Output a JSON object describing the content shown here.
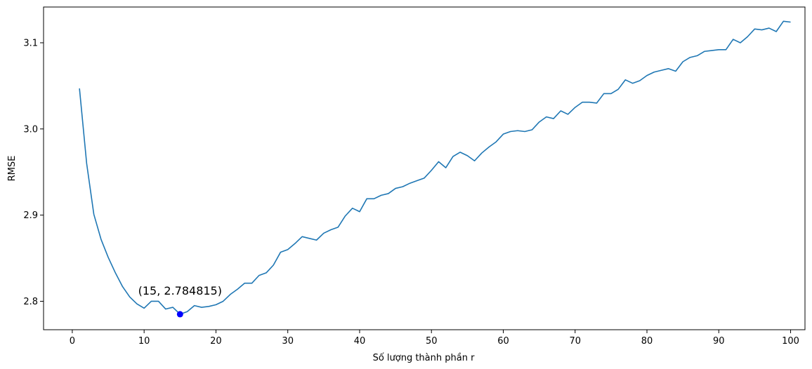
{
  "chart_data": {
    "type": "line",
    "title": "",
    "xlabel": "Số lượng thành phần r",
    "ylabel": "RMSE",
    "xlim": [
      -4,
      102
    ],
    "ylim": [
      2.767,
      3.1415
    ],
    "x_ticks": [
      0,
      10,
      20,
      30,
      40,
      50,
      60,
      70,
      80,
      90,
      100
    ],
    "y_ticks": [
      2.8,
      2.9,
      3.0,
      3.1
    ],
    "y_tick_labels": [
      "2.8",
      "2.9",
      "3.0",
      "3.1"
    ],
    "grid": false,
    "legend": "none",
    "series": [
      {
        "color": "#1f77b4",
        "x": [
          1,
          2,
          3,
          4,
          5,
          6,
          7,
          8,
          9,
          10,
          11,
          12,
          13,
          14,
          15,
          16,
          17,
          18,
          19,
          20,
          21,
          22,
          23,
          24,
          25,
          26,
          27,
          28,
          29,
          30,
          31,
          32,
          33,
          34,
          35,
          36,
          37,
          38,
          39,
          40,
          41,
          42,
          43,
          44,
          45,
          46,
          47,
          48,
          49,
          50,
          51,
          52,
          53,
          54,
          55,
          56,
          57,
          58,
          59,
          60,
          61,
          62,
          63,
          64,
          65,
          66,
          67,
          68,
          69,
          70,
          71,
          72,
          73,
          74,
          75,
          76,
          77,
          78,
          79,
          80,
          81,
          82,
          83,
          84,
          85,
          86,
          87,
          88,
          89,
          90,
          91,
          92,
          93,
          94,
          95,
          96,
          97,
          98,
          99,
          100
        ],
        "y": [
          3.047,
          2.96,
          2.901,
          2.872,
          2.851,
          2.833,
          2.817,
          2.805,
          2.797,
          2.792,
          2.8,
          2.8,
          2.791,
          2.793,
          2.785,
          2.788,
          2.795,
          2.793,
          2.794,
          2.796,
          2.8,
          2.808,
          2.814,
          2.821,
          2.821,
          2.83,
          2.833,
          2.842,
          2.857,
          2.86,
          2.867,
          2.875,
          2.873,
          2.871,
          2.879,
          2.883,
          2.886,
          2.899,
          2.908,
          2.904,
          2.919,
          2.919,
          2.923,
          2.925,
          2.931,
          2.933,
          2.937,
          2.94,
          2.943,
          2.952,
          2.962,
          2.955,
          2.968,
          2.973,
          2.969,
          2.963,
          2.972,
          2.979,
          2.985,
          2.994,
          2.997,
          2.998,
          2.997,
          2.999,
          3.008,
          3.014,
          3.012,
          3.021,
          3.017,
          3.025,
          3.031,
          3.031,
          3.03,
          3.041,
          3.041,
          3.046,
          3.057,
          3.053,
          3.056,
          3.062,
          3.066,
          3.068,
          3.07,
          3.067,
          3.078,
          3.083,
          3.085,
          3.09,
          3.091,
          3.092,
          3.092,
          3.104,
          3.1,
          3.107,
          3.116,
          3.115,
          3.117,
          3.113,
          3.125,
          3.124
        ]
      }
    ],
    "highlight": {
      "x": 15,
      "y": 2.785,
      "color": "#0000ff"
    },
    "annotation": {
      "text": "(15, 2.784815)",
      "x": 15,
      "y": 2.785
    }
  }
}
